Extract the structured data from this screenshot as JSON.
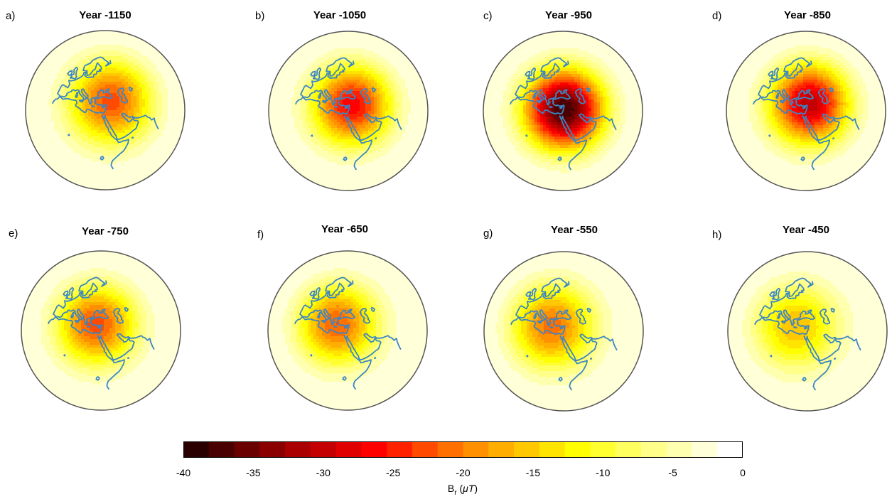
{
  "panels": [
    {
      "letter": "a)",
      "title": "Year -1150",
      "anomaly": {
        "center_lon": 40,
        "center_lat": 39,
        "min_value": -22,
        "spread_deg": 20
      }
    },
    {
      "letter": "b)",
      "title": "Year -1050",
      "anomaly": {
        "center_lon": 38,
        "center_lat": 37,
        "min_value": -26,
        "spread_deg": 19
      }
    },
    {
      "letter": "c)",
      "title": "Year -950",
      "anomaly": {
        "center_lon": 36,
        "center_lat": 34,
        "min_value": -38,
        "spread_deg": 19
      }
    },
    {
      "letter": "d)",
      "title": "Year -850",
      "anomaly": {
        "center_lon": 38,
        "center_lat": 38,
        "min_value": -30,
        "spread_deg": 19
      }
    },
    {
      "letter": "e)",
      "title": "Year -750",
      "anomaly": {
        "center_lon": 31,
        "center_lat": 37,
        "min_value": -22,
        "spread_deg": 19
      }
    },
    {
      "letter": "f)",
      "title": "Year -650",
      "anomaly": {
        "center_lon": 26,
        "center_lat": 37,
        "min_value": -21,
        "spread_deg": 19
      }
    },
    {
      "letter": "g)",
      "title": "Year -550",
      "anomaly": {
        "center_lon": 25,
        "center_lat": 36,
        "min_value": -20,
        "spread_deg": 20
      }
    },
    {
      "letter": "h)",
      "title": "Year -450",
      "anomaly": {
        "center_lon": 25,
        "center_lat": 36,
        "min_value": -15,
        "spread_deg": 20
      }
    }
  ],
  "map_colors": {
    "coastline": "#3a86c4",
    "frame": "#555555"
  },
  "colorbar": {
    "min": -40,
    "max": 0,
    "ticks": [
      "-40",
      "-35",
      "-30",
      "-25",
      "-20",
      "-15",
      "-10",
      "-5",
      "0"
    ],
    "label_main": "B",
    "label_sub": "r",
    "label_unit": "μT",
    "colors": [
      "#2a0000",
      "#4a0000",
      "#6a0000",
      "#8a0000",
      "#aa0000",
      "#c40000",
      "#e00000",
      "#ff0000",
      "#ff2200",
      "#ff4a00",
      "#ff7000",
      "#ff9000",
      "#ffae00",
      "#ffc800",
      "#ffe400",
      "#ffff00",
      "#ffff30",
      "#ffff60",
      "#ffff8a",
      "#ffffb0",
      "#ffffd8",
      "#ffffff"
    ]
  }
}
